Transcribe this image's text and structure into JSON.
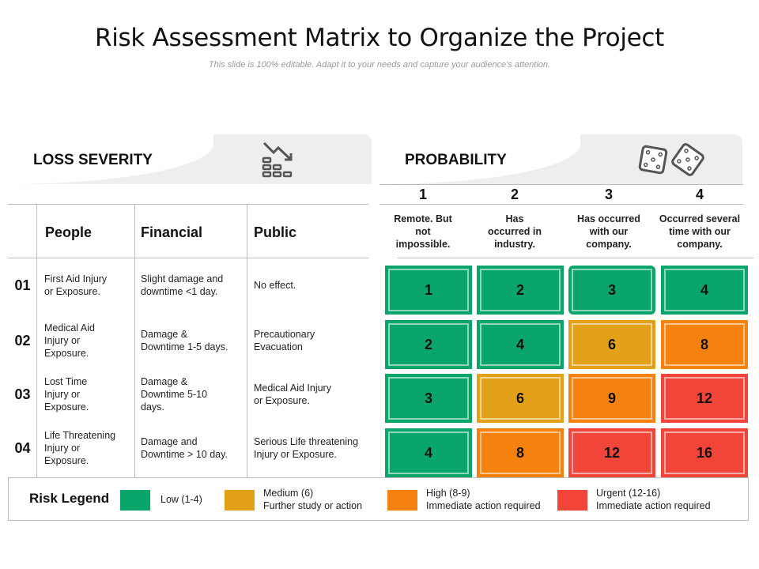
{
  "title": "Risk Assessment Matrix to Organize the Project",
  "subtitle": "This slide is 100% editable. Adapt it to your needs and capture your audience's attention.",
  "loss_severity": {
    "label": "LOSS SEVERITY",
    "icon": "declining-chart-icon",
    "columns": [
      "People",
      "Financial",
      "Public"
    ],
    "rows": [
      {
        "num": "01",
        "people": "First Aid Injury\nor Exposure.",
        "financial": "Slight damage and\ndowntime <1 day.",
        "public": "No effect."
      },
      {
        "num": "02",
        "people": "Medical Aid\nInjury or\nExposure.",
        "financial": "Damage &\nDowntime 1-5 days.",
        "public": "Precautionary\nEvacuation"
      },
      {
        "num": "03",
        "people": "Lost Time\nInjury or\nExposure.",
        "financial": "Damage &\nDowntime 5-10\ndays.",
        "public": "Medical Aid Injury\nor Exposure."
      },
      {
        "num": "04",
        "people": "Life Threatening\nInjury or\nExposure.",
        "financial": "Damage and\nDowntime > 10 day.",
        "public": "Serious Life threatening\nInjury or Exposure."
      }
    ]
  },
  "probability": {
    "label": "PROBABILITY",
    "icon": "dice-icon",
    "levels": [
      {
        "num": "1",
        "desc": "Remote. But\nnot\nimpossible."
      },
      {
        "num": "2",
        "desc": "Has\noccurred in\nindustry."
      },
      {
        "num": "3",
        "desc": "Has occurred\nwith our\ncompany."
      },
      {
        "num": "4",
        "desc": "Occurred several\ntime with our\ncompany."
      }
    ]
  },
  "matrix": [
    [
      {
        "v": "1",
        "level": "low"
      },
      {
        "v": "2",
        "level": "low"
      },
      {
        "v": "3",
        "level": "low"
      },
      {
        "v": "4",
        "level": "low"
      }
    ],
    [
      {
        "v": "2",
        "level": "low"
      },
      {
        "v": "4",
        "level": "low"
      },
      {
        "v": "6",
        "level": "medium"
      },
      {
        "v": "8",
        "level": "high"
      }
    ],
    [
      {
        "v": "3",
        "level": "low"
      },
      {
        "v": "6",
        "level": "medium"
      },
      {
        "v": "9",
        "level": "high"
      },
      {
        "v": "12",
        "level": "urgent"
      }
    ],
    [
      {
        "v": "4",
        "level": "low"
      },
      {
        "v": "8",
        "level": "high"
      },
      {
        "v": "12",
        "level": "urgent"
      },
      {
        "v": "16",
        "level": "urgent"
      }
    ]
  ],
  "colors": {
    "low": "#0aa56a",
    "medium": "#e3a11a",
    "high": "#f5820f",
    "urgent": "#f2453a"
  },
  "legend": {
    "title": "Risk Legend",
    "items": [
      {
        "level": "low",
        "text": "Low (1-4)"
      },
      {
        "level": "medium",
        "text": "Medium (6)\nFurther study or action"
      },
      {
        "level": "high",
        "text": "High (8-9)\nImmediate action required"
      },
      {
        "level": "urgent",
        "text": "Urgent (12-16)\nImmediate action required"
      }
    ]
  }
}
